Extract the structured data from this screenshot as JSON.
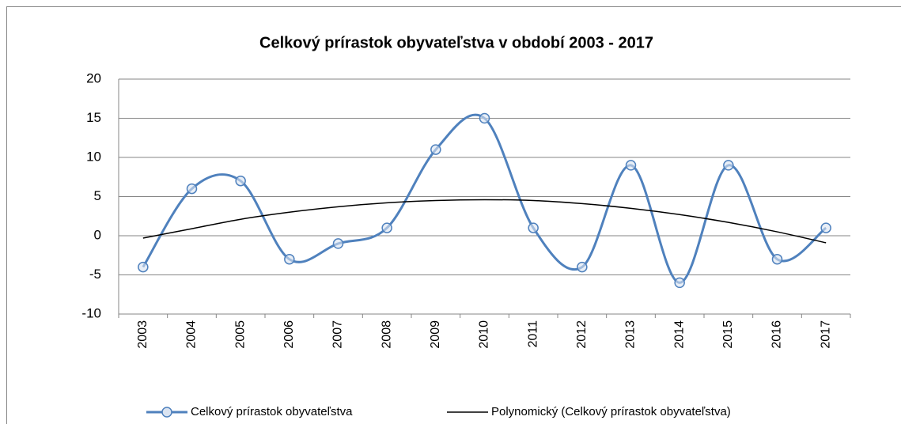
{
  "chart_data": {
    "type": "line",
    "title": "Celkový prírastok obyvateľstva v období 2003 - 2017",
    "categories": [
      "2003",
      "2004",
      "2005",
      "2006",
      "2007",
      "2008",
      "2009",
      "2010",
      "2011",
      "2012",
      "2013",
      "2014",
      "2015",
      "2016",
      "2017"
    ],
    "series": [
      {
        "name": "Celkový prírastok obyvateľstva",
        "color": "#4f81bd",
        "values": [
          -4,
          6,
          7,
          -3,
          -1,
          1,
          11,
          15,
          1,
          -4,
          9,
          -6,
          9,
          -3,
          1
        ]
      },
      {
        "name": "Polynomický (Celkový prírastok obyvateľstva)",
        "color": "#000000",
        "values": [
          -0.3,
          0.9,
          2.1,
          3.0,
          3.7,
          4.2,
          4.5,
          4.6,
          4.5,
          4.1,
          3.5,
          2.7,
          1.7,
          0.5,
          -0.9
        ]
      }
    ],
    "ylim": [
      -10,
      20
    ],
    "yticks": [
      -10,
      -5,
      0,
      5,
      10,
      15,
      20
    ],
    "grid": true,
    "legend": "bottom"
  }
}
